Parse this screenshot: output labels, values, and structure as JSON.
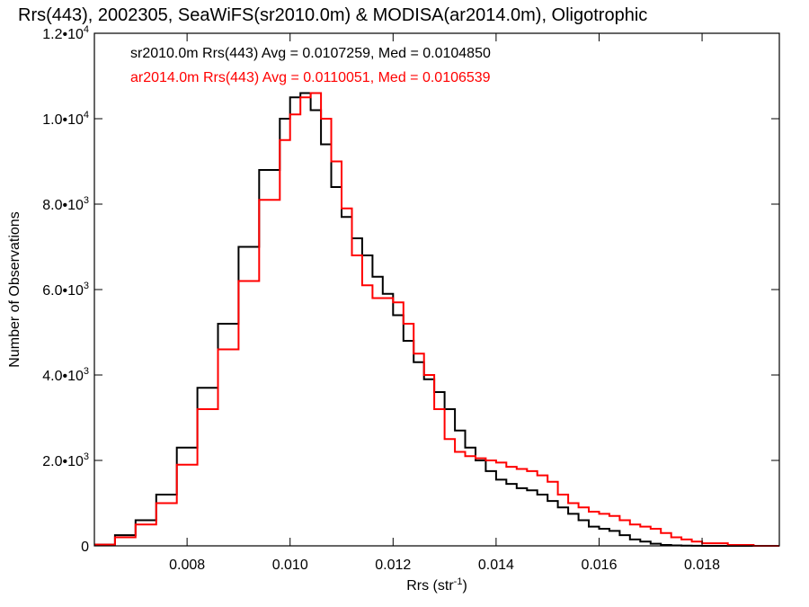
{
  "chart_data": {
    "type": "line",
    "title": "Rrs(443), 2002305, SeaWiFS(sr2010.0m) & MODISA(ar2014.0m), Oligotrophic",
    "xlabel": "Rrs (str",
    "xlabel_sup": "-1",
    "xlabel_tail": ")",
    "ylabel": "Number of Observations",
    "xlim": [
      0.0062,
      0.0195
    ],
    "ylim": [
      0,
      12000
    ],
    "x_ticks": [
      {
        "value": 0.008,
        "label": "0.008"
      },
      {
        "value": 0.01,
        "label": "0.010"
      },
      {
        "value": 0.012,
        "label": "0.012"
      },
      {
        "value": 0.014,
        "label": "0.014"
      },
      {
        "value": 0.016,
        "label": "0.016"
      },
      {
        "value": 0.018,
        "label": "0.018"
      }
    ],
    "y_ticks": [
      {
        "value": 0,
        "label": "0",
        "exp": ""
      },
      {
        "value": 2000,
        "label": "2.0•1",
        "exp": "3"
      },
      {
        "value": 4000,
        "label": "4.0•1",
        "exp": "3"
      },
      {
        "value": 6000,
        "label": "6.0•1",
        "exp": "3"
      },
      {
        "value": 8000,
        "label": "8.0•1",
        "exp": "3"
      },
      {
        "value": 10000,
        "label": "1.0•1",
        "exp": "4"
      },
      {
        "value": 12000,
        "label": "1.2•1",
        "exp": "4"
      }
    ],
    "legend": [
      "sr2010.0m Rrs(443) Avg = 0.0107259, Med = 0.0104850",
      "ar2014.0m Rrs(443) Avg = 0.0110051, Med = 0.0106539"
    ],
    "legend_placement": "top-left",
    "series": [
      {
        "color": "#000000",
        "x": [
          0.0062,
          0.0066,
          0.007,
          0.0074,
          0.0078,
          0.0082,
          0.0086,
          0.009,
          0.0094,
          0.0098,
          0.01,
          0.0102,
          0.0104,
          0.0106,
          0.0108,
          0.011,
          0.0112,
          0.0114,
          0.0116,
          0.0118,
          0.012,
          0.0122,
          0.0124,
          0.0126,
          0.0128,
          0.013,
          0.0132,
          0.0134,
          0.0136,
          0.0138,
          0.014,
          0.0142,
          0.0144,
          0.0146,
          0.0148,
          0.015,
          0.0152,
          0.0154,
          0.0156,
          0.0158,
          0.016,
          0.0162,
          0.0164,
          0.0166,
          0.0168,
          0.017,
          0.0172,
          0.0174,
          0.0176,
          0.0178,
          0.018,
          0.0185,
          0.019,
          0.0195
        ],
        "y": [
          30,
          250,
          600,
          1200,
          2300,
          3700,
          5200,
          7000,
          8800,
          10000,
          10500,
          10600,
          10200,
          9400,
          8400,
          7700,
          7200,
          6800,
          6300,
          5900,
          5400,
          4800,
          4300,
          3900,
          3600,
          3200,
          2700,
          2300,
          2000,
          1750,
          1550,
          1450,
          1350,
          1300,
          1200,
          1050,
          900,
          750,
          600,
          450,
          400,
          350,
          250,
          150,
          100,
          50,
          20,
          10,
          5,
          3,
          0,
          0,
          0,
          0
        ]
      },
      {
        "color": "#ff0000",
        "x": [
          0.0062,
          0.0066,
          0.007,
          0.0074,
          0.0078,
          0.0082,
          0.0086,
          0.009,
          0.0094,
          0.0098,
          0.01,
          0.0102,
          0.0104,
          0.0106,
          0.0108,
          0.011,
          0.0112,
          0.0114,
          0.0116,
          0.0118,
          0.012,
          0.0122,
          0.0124,
          0.0126,
          0.0128,
          0.013,
          0.0132,
          0.0134,
          0.0136,
          0.0138,
          0.014,
          0.0142,
          0.0144,
          0.0146,
          0.0148,
          0.015,
          0.0152,
          0.0154,
          0.0156,
          0.0158,
          0.016,
          0.0162,
          0.0164,
          0.0166,
          0.0168,
          0.017,
          0.0172,
          0.0174,
          0.0176,
          0.0178,
          0.018,
          0.0185,
          0.019,
          0.0195
        ],
        "y": [
          30,
          200,
          500,
          1000,
          1900,
          3200,
          4600,
          6200,
          8100,
          9500,
          10100,
          10500,
          10600,
          10000,
          9000,
          7900,
          6800,
          6100,
          5800,
          5800,
          5700,
          5200,
          4500,
          4000,
          3200,
          2500,
          2200,
          2100,
          2050,
          2000,
          1950,
          1850,
          1800,
          1750,
          1650,
          1500,
          1200,
          1000,
          900,
          800,
          750,
          700,
          600,
          500,
          450,
          400,
          300,
          200,
          150,
          100,
          60,
          20,
          0,
          0
        ]
      }
    ]
  }
}
